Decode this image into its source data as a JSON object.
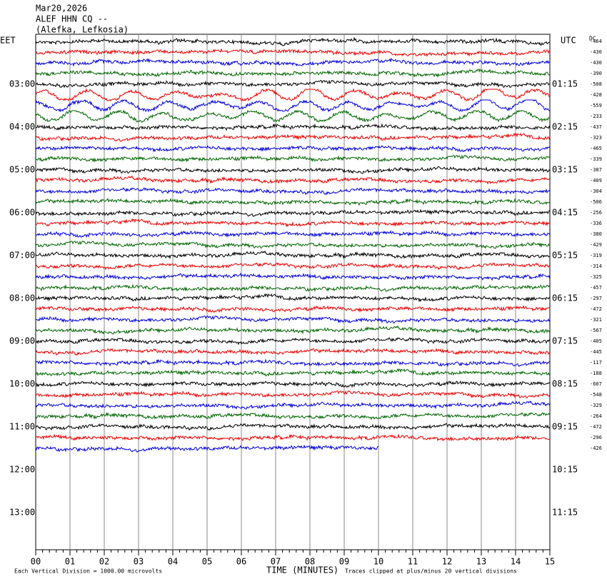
{
  "header": {
    "date": "Mar20,2026",
    "station": "ALEF HHN CQ --",
    "location": "(Alefka, Lefkosia)",
    "left_zone": "EET",
    "right_zone": "UTC",
    "dc_label": "DC"
  },
  "left_times": [
    "03:00",
    "04:00",
    "05:00",
    "06:00",
    "07:00",
    "08:00",
    "09:00",
    "10:00",
    "11:00",
    "12:00",
    "13:00"
  ],
  "right_times": [
    "01:15",
    "02:15",
    "03:15",
    "04:15",
    "05:15",
    "06:15",
    "07:15",
    "08:15",
    "09:15",
    "10:15",
    "11:15"
  ],
  "dc_offsets": [
    "-464",
    "-430",
    "-430",
    "-390",
    "-508",
    "-428",
    "-559",
    "-233",
    "-437",
    "-323",
    "-465",
    "-339",
    "-387",
    "-409",
    "-304",
    "-506",
    "-256",
    "-336",
    "-380",
    "-429",
    "-319",
    "-314",
    "-325",
    "-457",
    "-297",
    "-472",
    "-321",
    "-567",
    "-405",
    "-445",
    "-117",
    "-188",
    "-607",
    "-548",
    "-329",
    "-264",
    "-472",
    "-296",
    "-426"
  ],
  "x_ticks": [
    "00",
    "01",
    "02",
    "03",
    "04",
    "05",
    "06",
    "07",
    "08",
    "09",
    "10",
    "11",
    "12",
    "13",
    "14",
    "15"
  ],
  "x_title": "TIME (MINUTES)",
  "footer": {
    "scale": "Each Vertical Division = 1000.00 microvolts",
    "clip": "Traces clipped at plus/minus 20 vertical divisions"
  }
}
